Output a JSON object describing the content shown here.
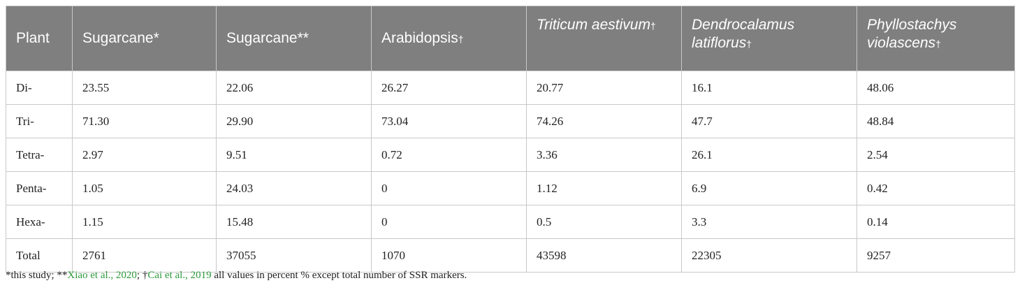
{
  "table": {
    "header": [
      {
        "text": "Plant"
      },
      {
        "text": "Sugarcane*"
      },
      {
        "text": "Sugarcane**"
      },
      {
        "text": "Arabidopsis",
        "mark": "†"
      },
      {
        "text": "Triticum aestivum",
        "mark": "†",
        "italic": true
      },
      {
        "text": "Dendrocalamus latiflorus",
        "mark": "†",
        "italic": true
      },
      {
        "text": "Phyllostachys violascens",
        "mark": "†",
        "italic": true
      }
    ],
    "rows": [
      {
        "label": "Di-",
        "values": [
          "23.55",
          "22.06",
          "26.27",
          "20.77",
          "16.1",
          "48.06"
        ]
      },
      {
        "label": "Tri-",
        "values": [
          "71.30",
          "29.90",
          "73.04",
          "74.26",
          "47.7",
          "48.84"
        ]
      },
      {
        "label": "Tetra-",
        "values": [
          "2.97",
          "9.51",
          "0.72",
          "3.36",
          "26.1",
          "2.54"
        ]
      },
      {
        "label": "Penta-",
        "values": [
          "1.05",
          "24.03",
          "0",
          "1.12",
          "6.9",
          "0.42"
        ]
      },
      {
        "label": "Hexa-",
        "values": [
          "1.15",
          "15.48",
          "0",
          "0.5",
          "3.3",
          "0.14"
        ]
      },
      {
        "label": "Total",
        "values": [
          "2761",
          "37055",
          "1070",
          "43598",
          "22305",
          "9257"
        ]
      }
    ]
  },
  "footnote": [
    {
      "text": "*this study; **"
    },
    {
      "text": "Xiao et al., 2020",
      "link": true
    },
    {
      "text": "; †"
    },
    {
      "text": "Cai et al., 2019",
      "link": true
    },
    {
      "text": " all values in percent % except total number of SSR markers."
    }
  ]
}
